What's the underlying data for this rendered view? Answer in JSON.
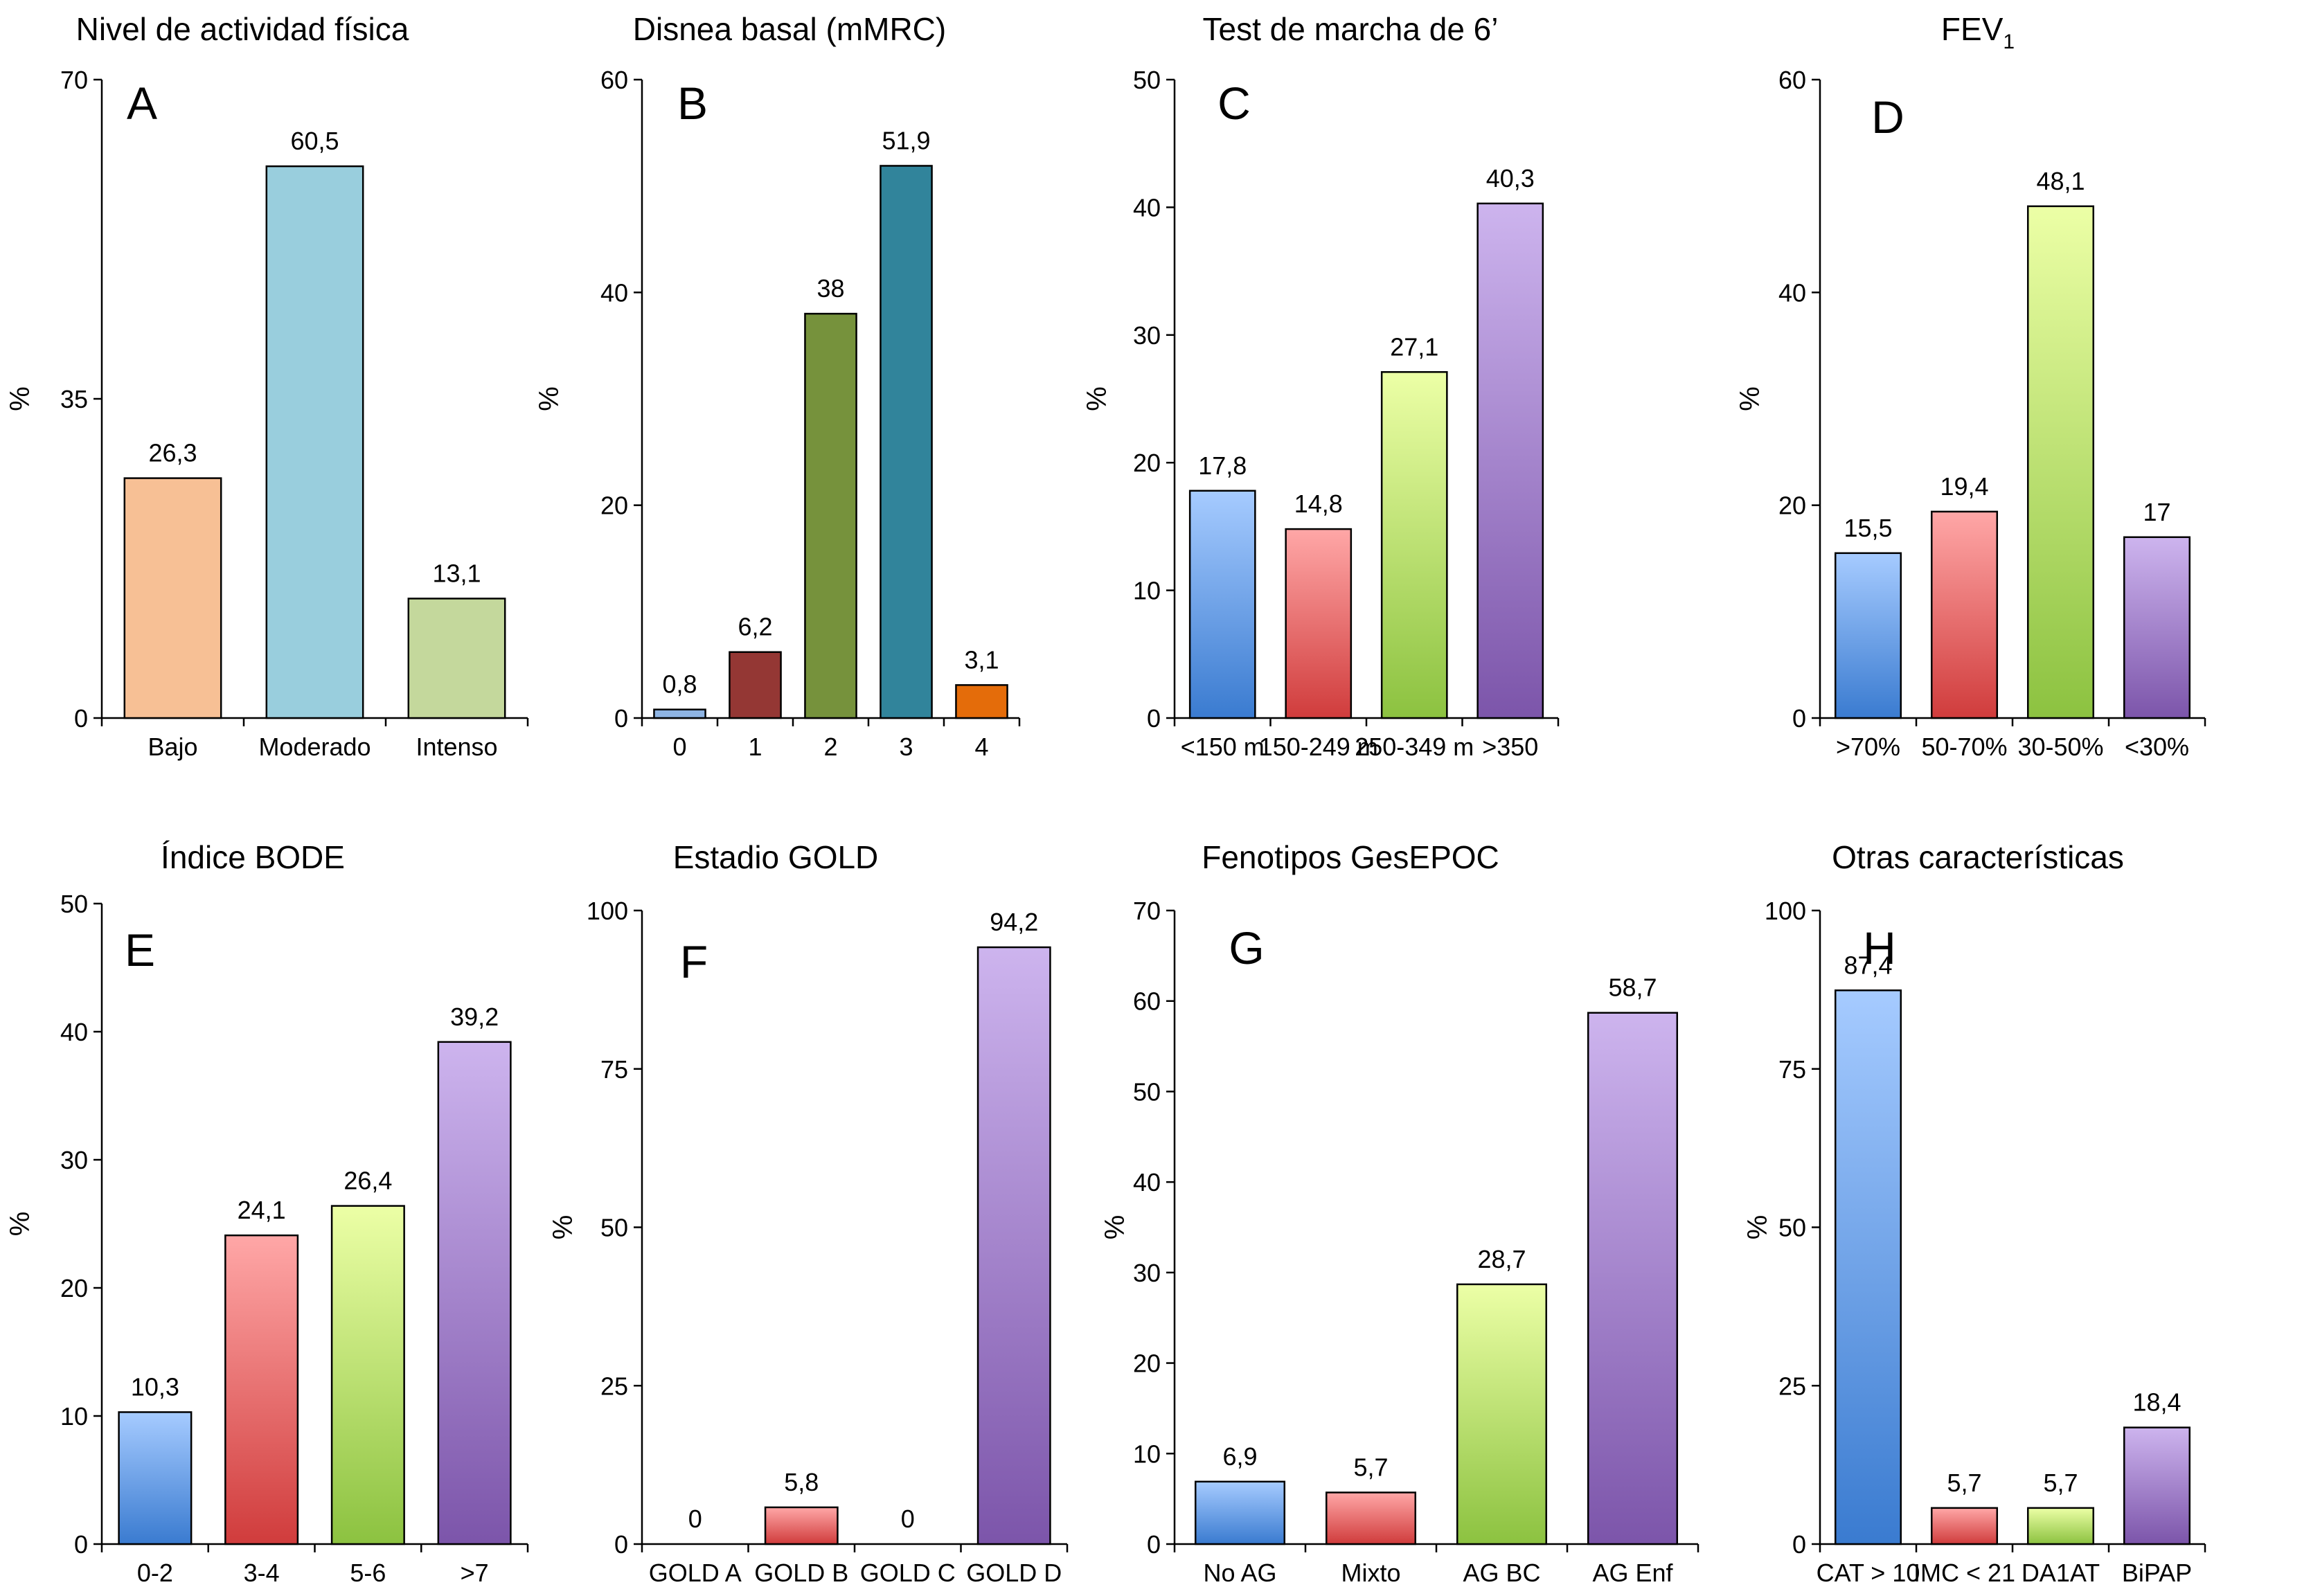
{
  "chart_data": [
    {
      "type": "bar",
      "title": "Nivel de actividad física",
      "panel_label": "A",
      "ylabel": "%",
      "xlabel": "",
      "ylim": [
        0,
        70
      ],
      "yticks": [
        0,
        35,
        70
      ],
      "categories": [
        "Bajo",
        "Moderado",
        "Intenso"
      ],
      "values": [
        26.3,
        60.5,
        13.1
      ],
      "value_labels": [
        "26,3",
        "60,5",
        "13,1"
      ],
      "colors": [
        "#f7c095",
        "#99cedd",
        "#c4d89c"
      ],
      "gradient": false
    },
    {
      "type": "bar",
      "title": "Disnea basal (mMRC)",
      "panel_label": "B",
      "ylabel": "%",
      "xlabel": "",
      "ylim": [
        0,
        60
      ],
      "yticks": [
        0,
        20,
        40,
        60
      ],
      "categories": [
        "0",
        "1",
        "2",
        "3",
        "4"
      ],
      "values": [
        0.8,
        6.2,
        38,
        51.9,
        3.1
      ],
      "value_labels": [
        "0,8",
        "6,2",
        "38",
        "51,9",
        "3,1"
      ],
      "colors": [
        "#8eb4e3",
        "#943734",
        "#76923c",
        "#31849b",
        "#e46c0a"
      ],
      "gradient": false
    },
    {
      "type": "bar",
      "title": "Test de marcha de 6’",
      "panel_label": "C",
      "ylabel": "%",
      "xlabel": "",
      "ylim": [
        0,
        50
      ],
      "yticks": [
        0,
        10,
        20,
        30,
        40,
        50
      ],
      "categories": [
        "<150 m",
        "150-249 m",
        "250-349 m",
        ">350"
      ],
      "values": [
        17.8,
        14.8,
        27.1,
        40.3
      ],
      "value_labels": [
        "17,8",
        "14,8",
        "27,1",
        "40,3"
      ],
      "colors": [
        "blue",
        "red",
        "green",
        "purple"
      ],
      "gradient": true
    },
    {
      "type": "bar",
      "title": "FEV",
      "title_sub": "1",
      "panel_label": "D",
      "ylabel": "%",
      "xlabel": "",
      "ylim": [
        0,
        60
      ],
      "yticks": [
        0,
        20,
        40,
        60
      ],
      "categories": [
        ">70%",
        "50-70%",
        "30-50%",
        "<30%"
      ],
      "values": [
        15.5,
        19.4,
        48.1,
        17
      ],
      "value_labels": [
        "15,5",
        "19,4",
        "48,1",
        "17"
      ],
      "colors": [
        "blue",
        "red",
        "green",
        "purple"
      ],
      "gradient": true
    },
    {
      "type": "bar",
      "title": "Índice BODE",
      "panel_label": "E",
      "ylabel": "%",
      "xlabel": "",
      "ylim": [
        0,
        50
      ],
      "yticks": [
        0,
        10,
        20,
        30,
        40,
        50
      ],
      "categories": [
        "0-2",
        "3-4",
        "5-6",
        ">7"
      ],
      "values": [
        10.3,
        24.1,
        26.4,
        39.2
      ],
      "value_labels": [
        "10,3",
        "24,1",
        "26,4",
        "39,2"
      ],
      "colors": [
        "blue",
        "red",
        "green",
        "purple"
      ],
      "gradient": true
    },
    {
      "type": "bar",
      "title": "Estadio GOLD",
      "panel_label": "F",
      "ylabel": "%",
      "xlabel": "",
      "ylim": [
        0,
        100
      ],
      "yticks": [
        0,
        25,
        50,
        75,
        100
      ],
      "categories": [
        "GOLD A",
        "GOLD B",
        "GOLD C",
        "GOLD D"
      ],
      "values": [
        0,
        5.8,
        0,
        94.2
      ],
      "value_labels": [
        "0",
        "5,8",
        "0",
        "94,2"
      ],
      "colors": [
        "blue",
        "red",
        "green",
        "purple"
      ],
      "gradient": true
    },
    {
      "type": "bar",
      "title": "Fenotipos GesEPOC",
      "panel_label": "G",
      "ylabel": "%",
      "xlabel": "",
      "ylim": [
        0,
        70
      ],
      "yticks": [
        0,
        10,
        20,
        30,
        40,
        50,
        60,
        70
      ],
      "categories": [
        "No AG",
        "Mixto",
        "AG BC",
        "AG Enf"
      ],
      "values": [
        6.9,
        5.7,
        28.7,
        58.7
      ],
      "value_labels": [
        "6,9",
        "5,7",
        "28,7",
        "58,7"
      ],
      "colors": [
        "blue",
        "red",
        "green",
        "purple"
      ],
      "gradient": true
    },
    {
      "type": "bar",
      "title": "Otras características",
      "panel_label": "H",
      "ylabel": "%",
      "xlabel": "",
      "ylim": [
        0,
        100
      ],
      "yticks": [
        0,
        25,
        50,
        75,
        100
      ],
      "categories": [
        "CAT > 10",
        "IMC < 21",
        "DA1AT",
        "BiPAP"
      ],
      "values": [
        87.4,
        5.7,
        5.7,
        18.4
      ],
      "value_labels": [
        "87,4",
        "5,7",
        "5,7",
        "18,4"
      ],
      "colors": [
        "blue",
        "red",
        "green",
        "purple"
      ],
      "gradient": true
    }
  ]
}
